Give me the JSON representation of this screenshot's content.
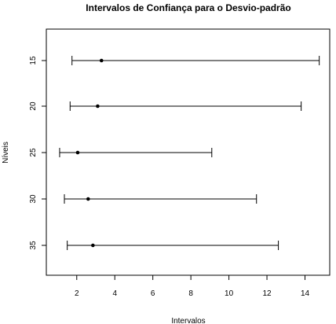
{
  "chart_data": {
    "type": "interval",
    "title": "Intervalos de Confiança para o Desvio-padrão",
    "xlabel": "Intervalos",
    "ylabel": "Níveis",
    "xlim": [
      0.4,
      15.3
    ],
    "x_ticks": [
      2,
      4,
      6,
      8,
      10,
      12,
      14
    ],
    "y_ticks": [
      "15",
      "20",
      "25",
      "30",
      "35"
    ],
    "grid": false,
    "series": [
      {
        "level": "15",
        "lower": 1.75,
        "estimate": 3.3,
        "upper": 14.75
      },
      {
        "level": "20",
        "lower": 1.65,
        "estimate": 3.1,
        "upper": 13.8
      },
      {
        "level": "25",
        "lower": 1.1,
        "estimate": 2.05,
        "upper": 9.1
      },
      {
        "level": "30",
        "lower": 1.35,
        "estimate": 2.6,
        "upper": 11.45
      },
      {
        "level": "35",
        "lower": 1.5,
        "estimate": 2.85,
        "upper": 12.6
      }
    ]
  }
}
